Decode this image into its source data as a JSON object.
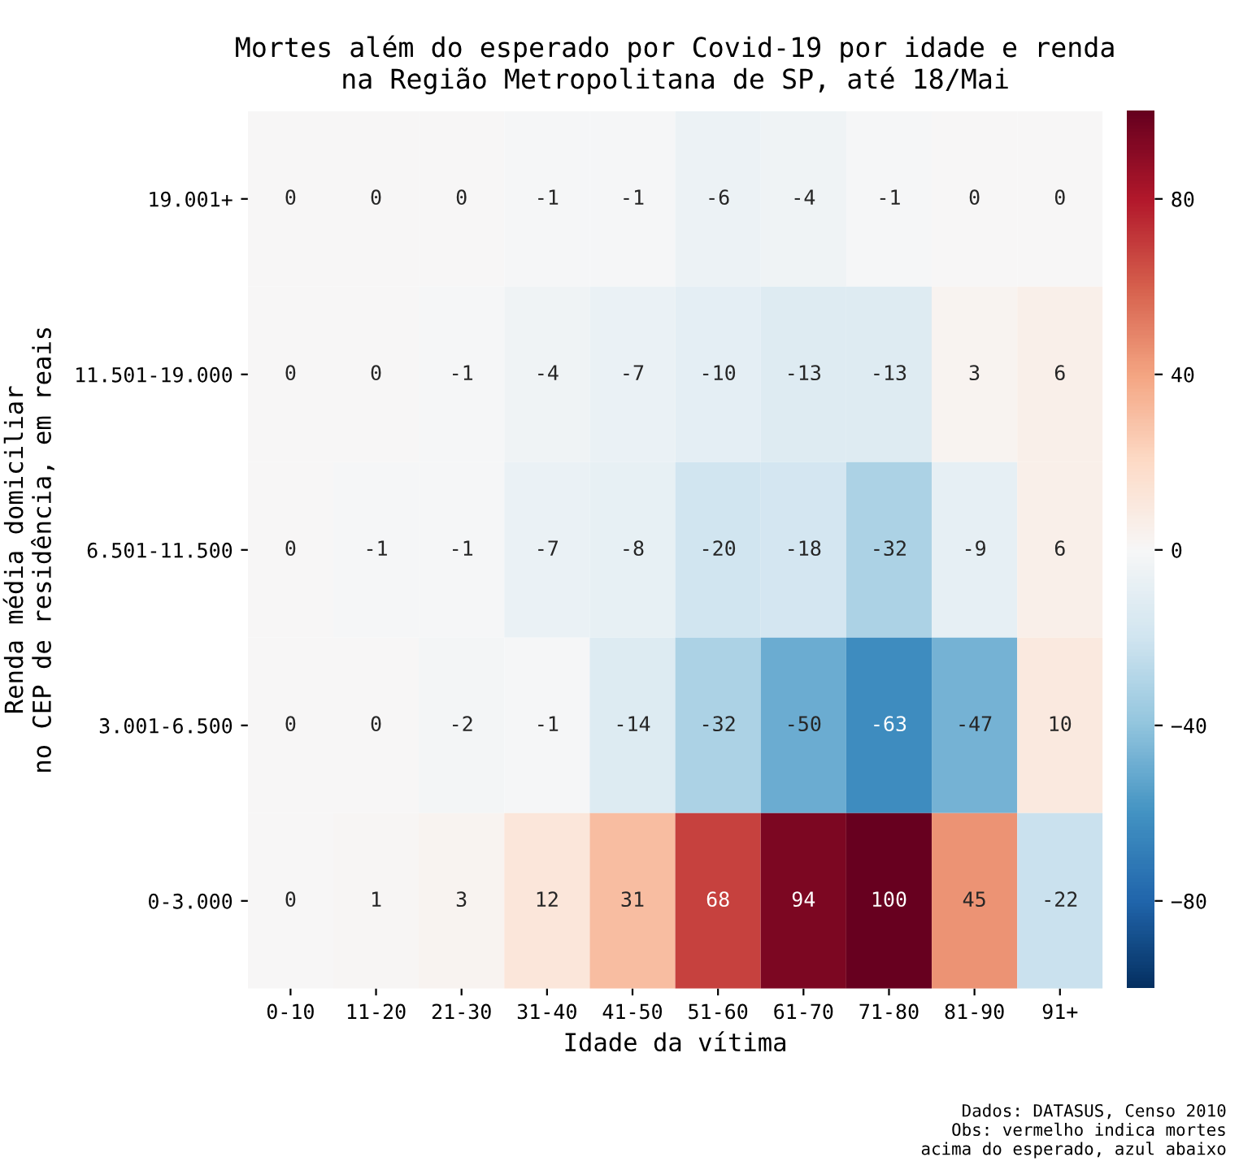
{
  "chart_data": {
    "type": "heatmap",
    "title": "Mortes além do esperado por Covid-19 por idade e renda\nna Região Metropolitana de SP, até 18/Mai",
    "xlabel": "Idade da vítima",
    "ylabel": "Renda média domiciliar\nno CEP de residência, em reais",
    "categories": [
      "0-10",
      "11-20",
      "21-30",
      "31-40",
      "41-50",
      "51-60",
      "61-70",
      "71-80",
      "81-90",
      "91+"
    ],
    "y_categories": [
      "19.001+",
      "11.501-19.000",
      "6.501-11.500",
      "3.001-6.500",
      "0-3.000"
    ],
    "cells": [
      [
        0,
        0,
        0,
        -1,
        -1,
        -6,
        -4,
        -1,
        0,
        0
      ],
      [
        0,
        0,
        -1,
        -4,
        -7,
        -10,
        -13,
        -13,
        3,
        6
      ],
      [
        0,
        -1,
        -1,
        -7,
        -8,
        -20,
        -18,
        -32,
        -9,
        6
      ],
      [
        0,
        0,
        -2,
        -1,
        -14,
        -32,
        -50,
        -63,
        -47,
        10
      ],
      [
        0,
        1,
        3,
        12,
        31,
        68,
        94,
        100,
        45,
        -22
      ]
    ],
    "data_labels": true,
    "clim": [
      -100,
      100
    ],
    "cticks": [
      {
        "value": -80,
        "label": "−80"
      },
      {
        "value": -40,
        "label": "−40"
      },
      0,
      40,
      80
    ],
    "annotations": [
      "Dados: DATASUS, Censo 2010\nObs: vermelho indica mortes\nacima do esperado, azul abaixo"
    ]
  }
}
